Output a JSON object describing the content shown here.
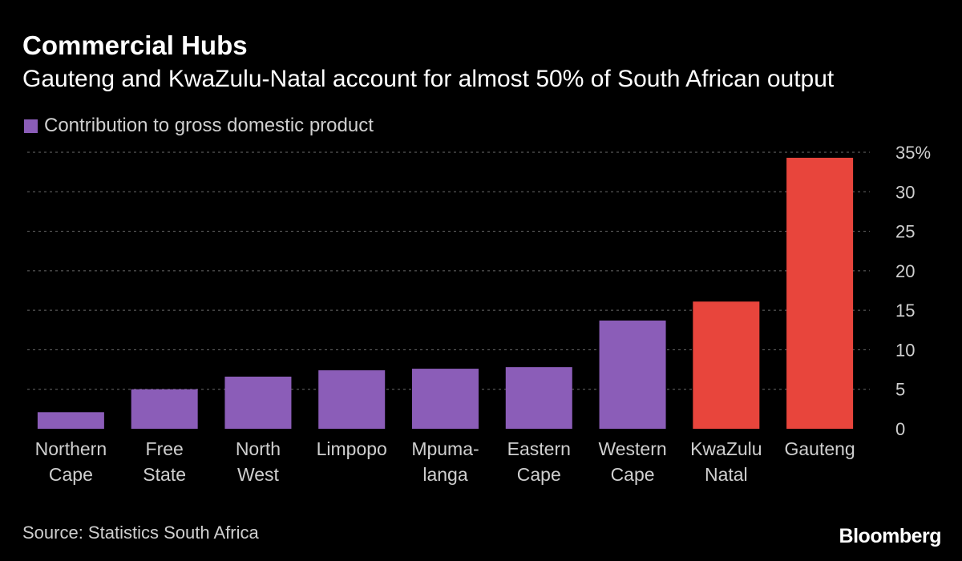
{
  "title": "Commercial Hubs",
  "subtitle": "Gauteng and KwaZulu-Natal account for almost 50% of South African output",
  "legend_label": "Contribution to gross domestic product",
  "source": "Source: Statistics South Africa",
  "brand": "Bloomberg",
  "colors": {
    "background": "#000000",
    "primary_bar": "#8b5db8",
    "highlight_bar": "#e8453c",
    "grid": "#6b6b6b",
    "text": "#cfcfcf"
  },
  "chart_data": {
    "type": "bar",
    "title": "Commercial Hubs",
    "xlabel": "",
    "ylabel": "",
    "ylim": [
      0,
      35
    ],
    "yticks": [
      "0",
      "5",
      "10",
      "15",
      "20",
      "25",
      "30",
      "35%"
    ],
    "ytick_values": [
      0,
      5,
      10,
      15,
      20,
      25,
      30,
      35
    ],
    "grid": true,
    "legend": "top-left",
    "categories": [
      [
        "Northern",
        "Cape"
      ],
      [
        "Free",
        "State"
      ],
      [
        "North",
        "West"
      ],
      [
        "Limpopo"
      ],
      [
        "Mpuma-",
        "langa"
      ],
      [
        "Eastern",
        "Cape"
      ],
      [
        "Western",
        "Cape"
      ],
      [
        "KwaZulu",
        "Natal"
      ],
      [
        "Gauteng"
      ]
    ],
    "values": [
      2.1,
      5.0,
      6.6,
      7.4,
      7.6,
      7.8,
      13.7,
      16.1,
      34.3
    ],
    "highlight": [
      false,
      false,
      false,
      false,
      false,
      false,
      false,
      true,
      true
    ]
  }
}
